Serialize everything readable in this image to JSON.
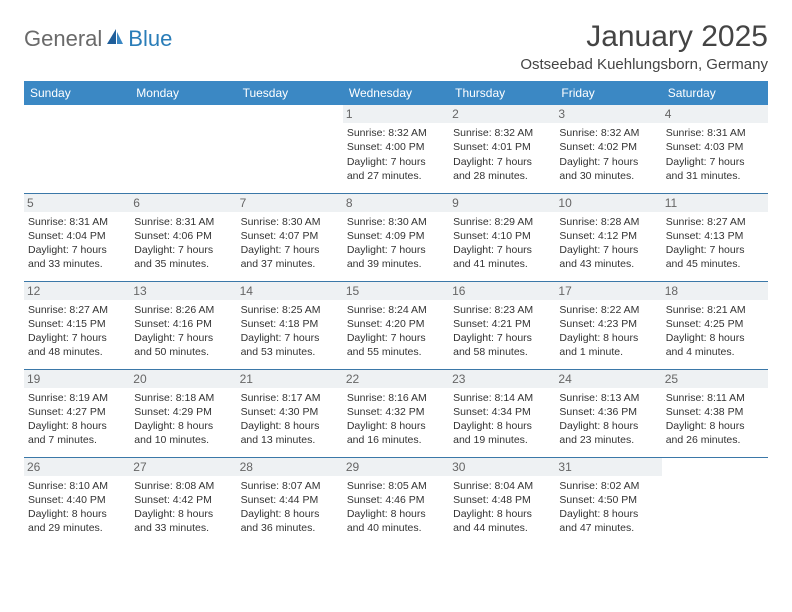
{
  "logo": {
    "general": "General",
    "blue": "Blue"
  },
  "title": "January 2025",
  "location": "Ostseebad Kuehlungsborn, Germany",
  "colors": {
    "header_bg": "#3b88c4",
    "header_fg": "#ffffff",
    "daynum_bg": "#eef1f3",
    "row_border": "#3b78a8",
    "logo_accent": "#2a7db8"
  },
  "day_headers": [
    "Sunday",
    "Monday",
    "Tuesday",
    "Wednesday",
    "Thursday",
    "Friday",
    "Saturday"
  ],
  "weeks": [
    [
      {
        "n": "",
        "t": ""
      },
      {
        "n": "",
        "t": ""
      },
      {
        "n": "",
        "t": ""
      },
      {
        "n": "1",
        "t": "Sunrise: 8:32 AM\nSunset: 4:00 PM\nDaylight: 7 hours and 27 minutes."
      },
      {
        "n": "2",
        "t": "Sunrise: 8:32 AM\nSunset: 4:01 PM\nDaylight: 7 hours and 28 minutes."
      },
      {
        "n": "3",
        "t": "Sunrise: 8:32 AM\nSunset: 4:02 PM\nDaylight: 7 hours and 30 minutes."
      },
      {
        "n": "4",
        "t": "Sunrise: 8:31 AM\nSunset: 4:03 PM\nDaylight: 7 hours and 31 minutes."
      }
    ],
    [
      {
        "n": "5",
        "t": "Sunrise: 8:31 AM\nSunset: 4:04 PM\nDaylight: 7 hours and 33 minutes."
      },
      {
        "n": "6",
        "t": "Sunrise: 8:31 AM\nSunset: 4:06 PM\nDaylight: 7 hours and 35 minutes."
      },
      {
        "n": "7",
        "t": "Sunrise: 8:30 AM\nSunset: 4:07 PM\nDaylight: 7 hours and 37 minutes."
      },
      {
        "n": "8",
        "t": "Sunrise: 8:30 AM\nSunset: 4:09 PM\nDaylight: 7 hours and 39 minutes."
      },
      {
        "n": "9",
        "t": "Sunrise: 8:29 AM\nSunset: 4:10 PM\nDaylight: 7 hours and 41 minutes."
      },
      {
        "n": "10",
        "t": "Sunrise: 8:28 AM\nSunset: 4:12 PM\nDaylight: 7 hours and 43 minutes."
      },
      {
        "n": "11",
        "t": "Sunrise: 8:27 AM\nSunset: 4:13 PM\nDaylight: 7 hours and 45 minutes."
      }
    ],
    [
      {
        "n": "12",
        "t": "Sunrise: 8:27 AM\nSunset: 4:15 PM\nDaylight: 7 hours and 48 minutes."
      },
      {
        "n": "13",
        "t": "Sunrise: 8:26 AM\nSunset: 4:16 PM\nDaylight: 7 hours and 50 minutes."
      },
      {
        "n": "14",
        "t": "Sunrise: 8:25 AM\nSunset: 4:18 PM\nDaylight: 7 hours and 53 minutes."
      },
      {
        "n": "15",
        "t": "Sunrise: 8:24 AM\nSunset: 4:20 PM\nDaylight: 7 hours and 55 minutes."
      },
      {
        "n": "16",
        "t": "Sunrise: 8:23 AM\nSunset: 4:21 PM\nDaylight: 7 hours and 58 minutes."
      },
      {
        "n": "17",
        "t": "Sunrise: 8:22 AM\nSunset: 4:23 PM\nDaylight: 8 hours and 1 minute."
      },
      {
        "n": "18",
        "t": "Sunrise: 8:21 AM\nSunset: 4:25 PM\nDaylight: 8 hours and 4 minutes."
      }
    ],
    [
      {
        "n": "19",
        "t": "Sunrise: 8:19 AM\nSunset: 4:27 PM\nDaylight: 8 hours and 7 minutes."
      },
      {
        "n": "20",
        "t": "Sunrise: 8:18 AM\nSunset: 4:29 PM\nDaylight: 8 hours and 10 minutes."
      },
      {
        "n": "21",
        "t": "Sunrise: 8:17 AM\nSunset: 4:30 PM\nDaylight: 8 hours and 13 minutes."
      },
      {
        "n": "22",
        "t": "Sunrise: 8:16 AM\nSunset: 4:32 PM\nDaylight: 8 hours and 16 minutes."
      },
      {
        "n": "23",
        "t": "Sunrise: 8:14 AM\nSunset: 4:34 PM\nDaylight: 8 hours and 19 minutes."
      },
      {
        "n": "24",
        "t": "Sunrise: 8:13 AM\nSunset: 4:36 PM\nDaylight: 8 hours and 23 minutes."
      },
      {
        "n": "25",
        "t": "Sunrise: 8:11 AM\nSunset: 4:38 PM\nDaylight: 8 hours and 26 minutes."
      }
    ],
    [
      {
        "n": "26",
        "t": "Sunrise: 8:10 AM\nSunset: 4:40 PM\nDaylight: 8 hours and 29 minutes."
      },
      {
        "n": "27",
        "t": "Sunrise: 8:08 AM\nSunset: 4:42 PM\nDaylight: 8 hours and 33 minutes."
      },
      {
        "n": "28",
        "t": "Sunrise: 8:07 AM\nSunset: 4:44 PM\nDaylight: 8 hours and 36 minutes."
      },
      {
        "n": "29",
        "t": "Sunrise: 8:05 AM\nSunset: 4:46 PM\nDaylight: 8 hours and 40 minutes."
      },
      {
        "n": "30",
        "t": "Sunrise: 8:04 AM\nSunset: 4:48 PM\nDaylight: 8 hours and 44 minutes."
      },
      {
        "n": "31",
        "t": "Sunrise: 8:02 AM\nSunset: 4:50 PM\nDaylight: 8 hours and 47 minutes."
      },
      {
        "n": "",
        "t": ""
      }
    ]
  ]
}
